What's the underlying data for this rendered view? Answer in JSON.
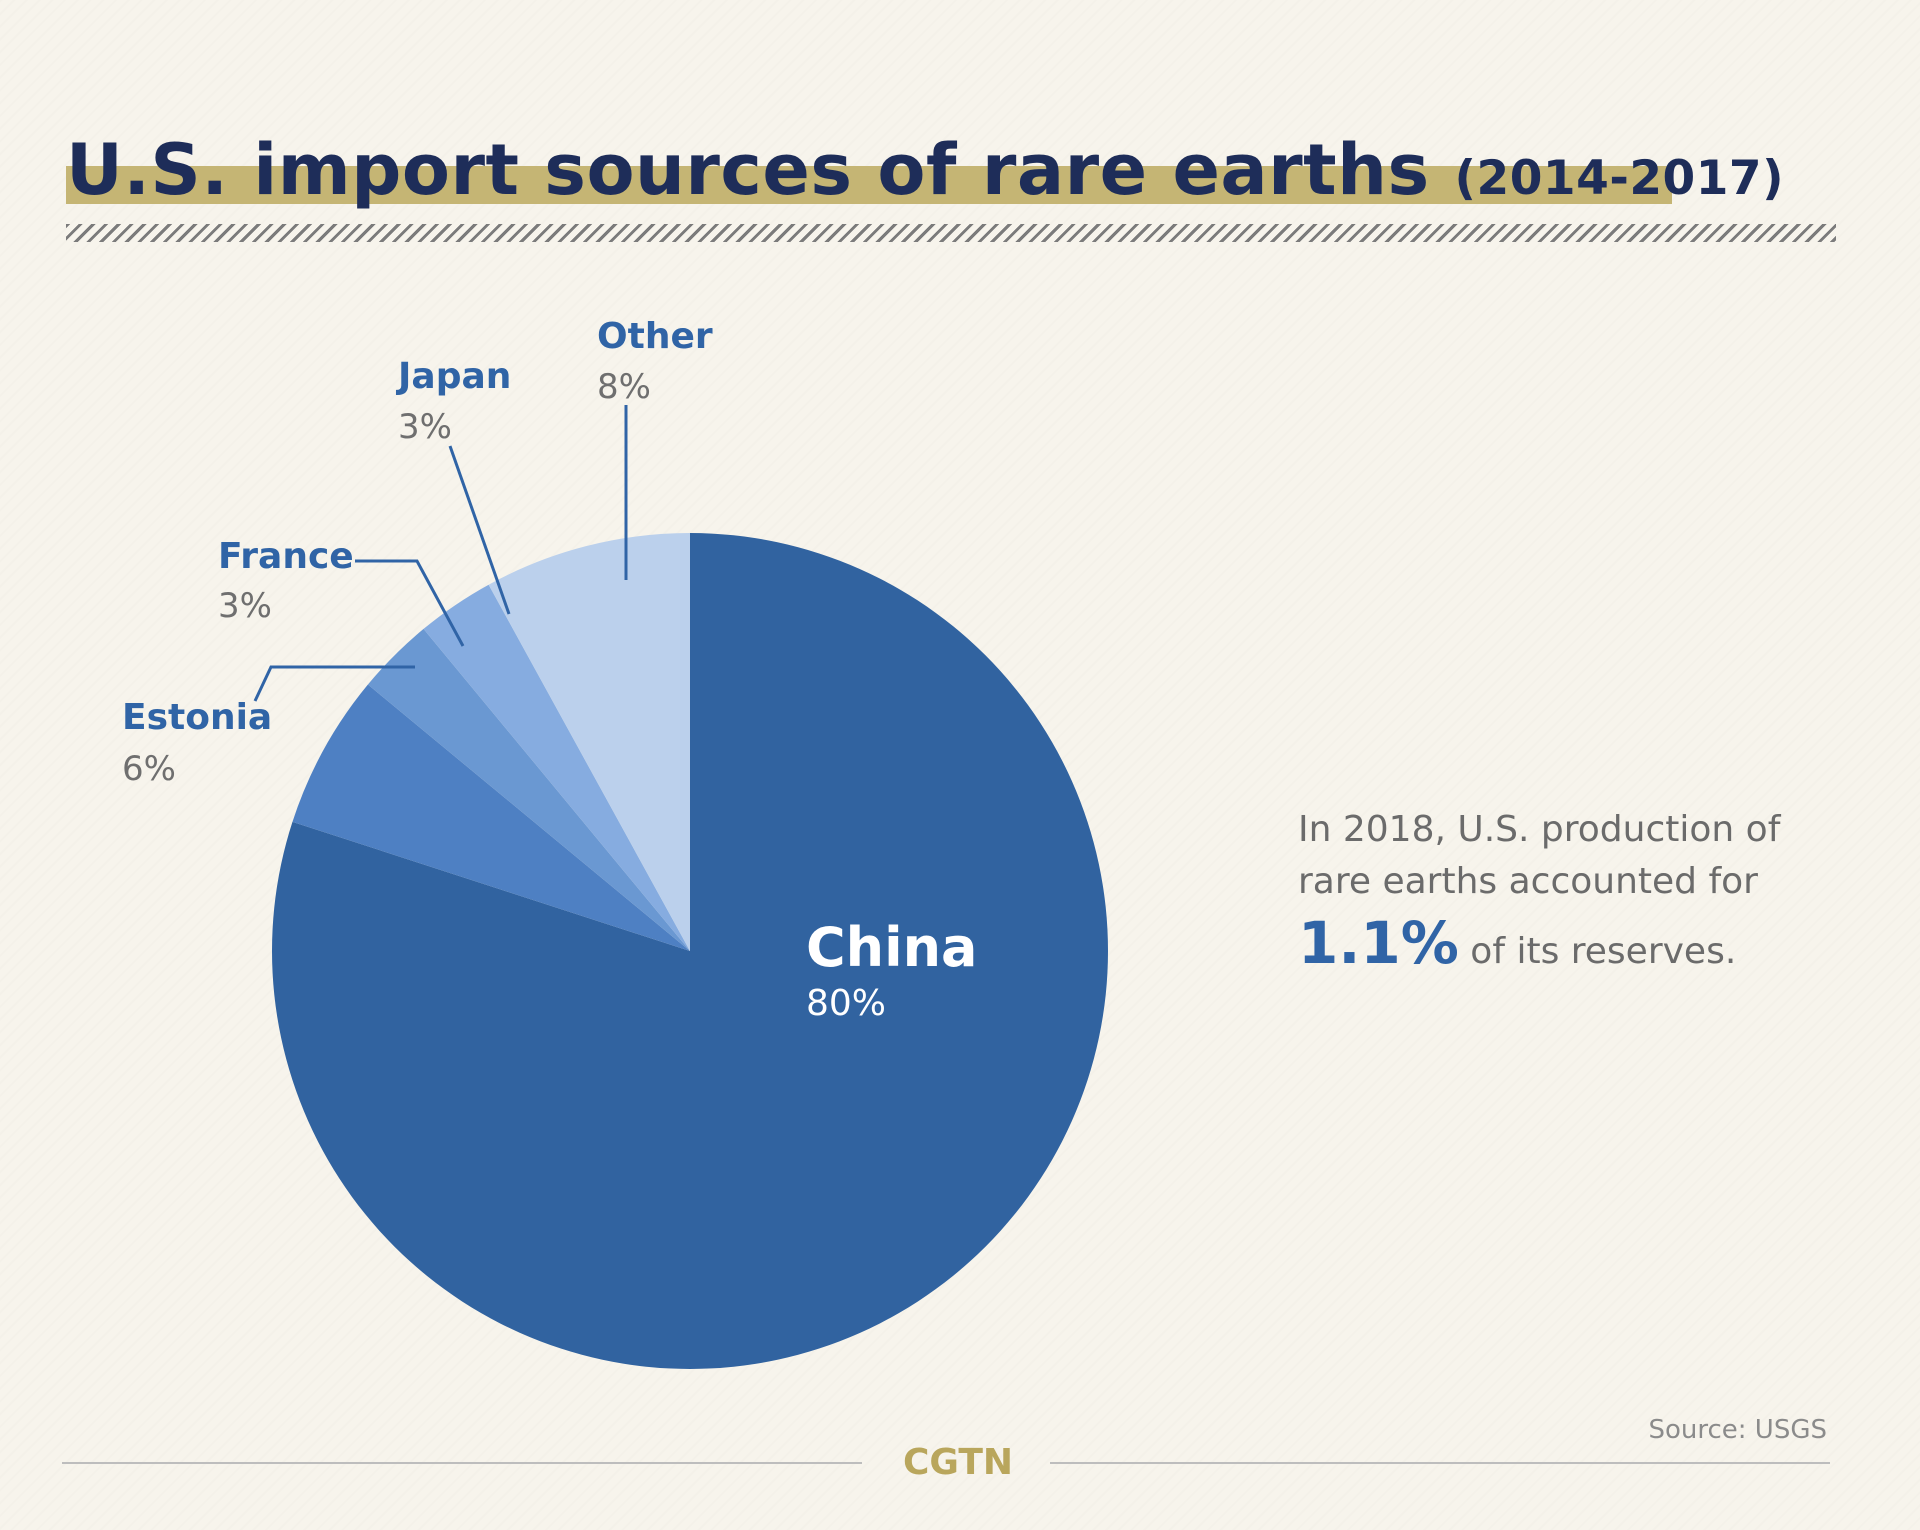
{
  "header": {
    "title": "U.S. import sources of rare earths",
    "subtitle": "(2014-2017)"
  },
  "chart_data": {
    "type": "pie",
    "title": "U.S. import sources of rare earths (2014-2017)",
    "slices": [
      {
        "label": "China",
        "value": 80,
        "display": "80%",
        "color": "#3163a0"
      },
      {
        "label": "Estonia",
        "value": 6,
        "display": "6%",
        "color": "#4e80c3"
      },
      {
        "label": "France",
        "value": 3,
        "display": "3%",
        "color": "#6a98d2"
      },
      {
        "label": "Japan",
        "value": 3,
        "display": "3%",
        "color": "#86ace0"
      },
      {
        "label": "Other",
        "value": 8,
        "display": "8%",
        "color": "#bbd0ec"
      }
    ]
  },
  "note": {
    "line1": "In 2018, U.S. production of",
    "line2": "rare earths accounted for",
    "highlight": "1.1%",
    "line3": " of its reserves."
  },
  "footer": {
    "source": "Source: USGS",
    "logo": "CGTN"
  },
  "colors": {
    "background": "#f7f4ec",
    "title": "#1e2d59",
    "title_bar": "#c5b574",
    "label": "#3064a6",
    "logo": "#b9a65c"
  }
}
